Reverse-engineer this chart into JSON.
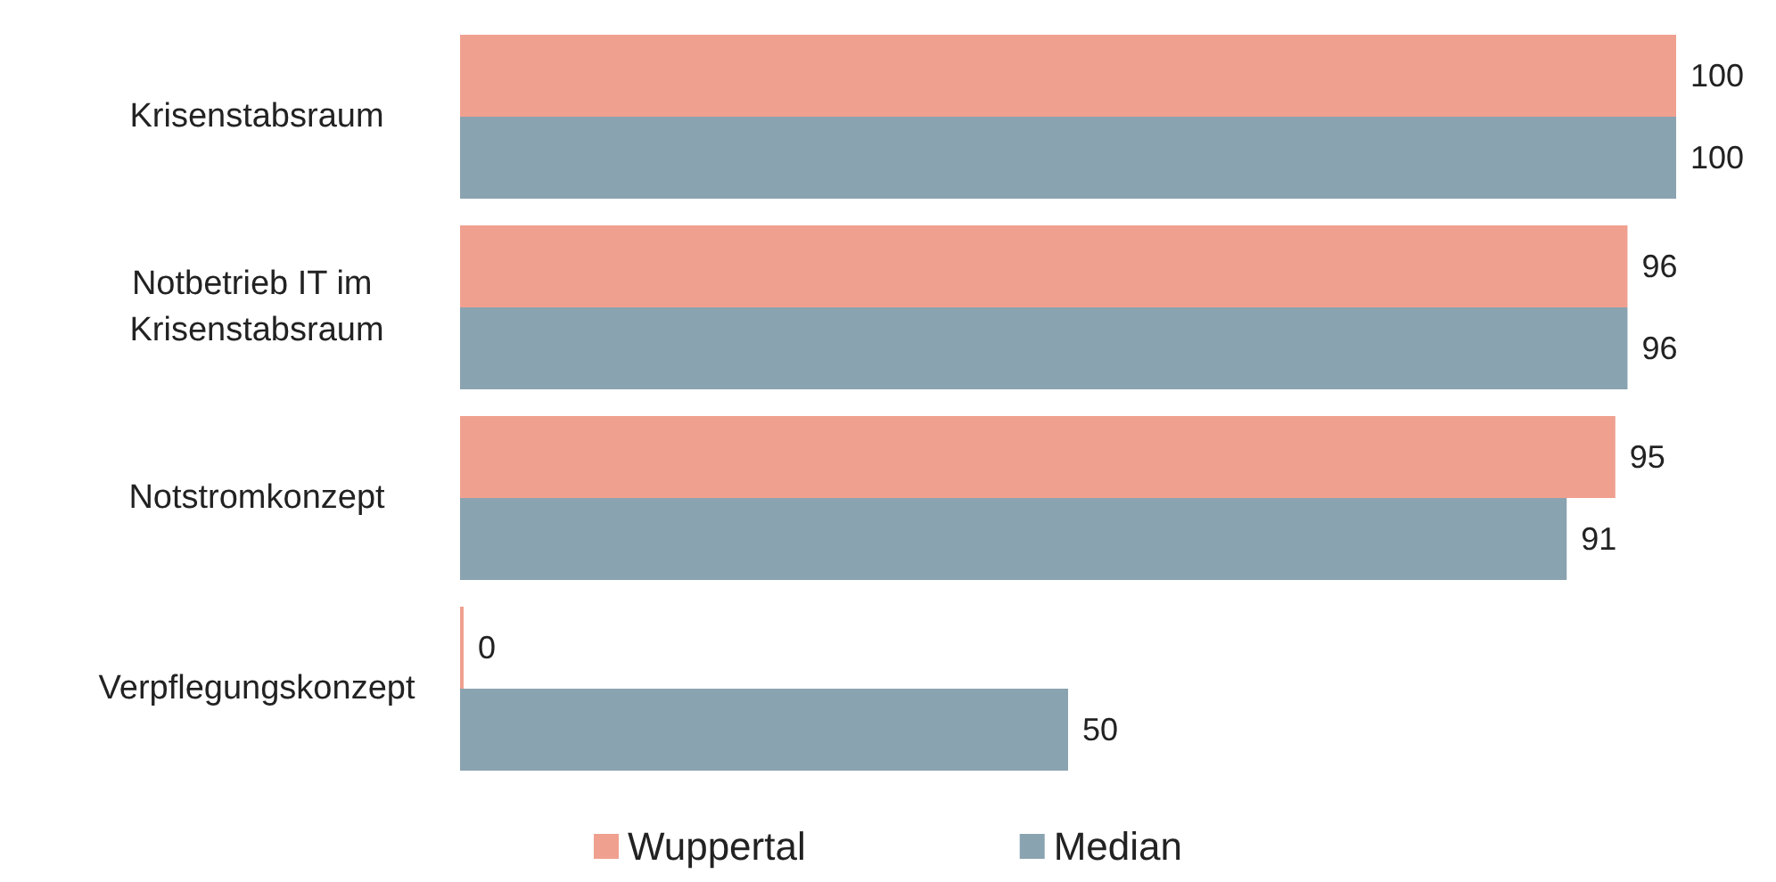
{
  "chart_data": {
    "type": "bar",
    "orientation": "horizontal",
    "categories": [
      "Krisenstabsraum",
      "Notbetrieb IT im Krisenstabsraum",
      "Notstromkonzept",
      "Verpflegungskonzept"
    ],
    "series": [
      {
        "name": "Wuppertal",
        "color": "#f0a08f",
        "values": [
          100,
          96,
          95,
          0
        ]
      },
      {
        "name": "Median",
        "color": "#8aa3b0",
        "values": [
          100,
          96,
          91,
          50
        ]
      }
    ],
    "data_labels": true,
    "legend": "bottom",
    "grid": false
  }
}
